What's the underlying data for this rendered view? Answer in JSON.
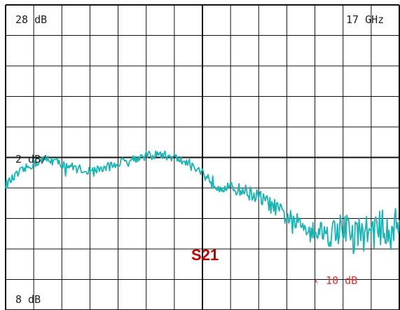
{
  "chart_data": {
    "type": "line",
    "trace_label": "S21",
    "top_left_label": "28 dB",
    "top_right_label": "17 GHz",
    "scale_label": "2 dB/",
    "bottom_left_label": "8 dB",
    "marker_label": "‹ 10 dB",
    "ylim": [
      8,
      28
    ],
    "x_divisions": 14,
    "y_divisions": 10,
    "grid": true,
    "series": [
      {
        "color": "#17b4b4",
        "x": [
          0,
          0.5,
          1,
          1.5,
          2,
          2.5,
          3,
          3.5,
          4,
          4.5,
          5,
          5.5,
          6,
          6.5,
          7,
          7.5,
          8,
          8.5,
          9,
          9.5,
          10,
          10.5,
          11,
          11.5,
          12,
          12.5,
          13,
          13.5,
          14
        ],
        "y": [
          16.2,
          17.0,
          17.6,
          17.9,
          17.6,
          17.3,
          17.1,
          17.3,
          17.6,
          17.9,
          18.1,
          18.2,
          18.0,
          17.6,
          17.0,
          16.2,
          16.0,
          15.8,
          15.4,
          14.8,
          14.1,
          13.6,
          13.3,
          13.0,
          13.5,
          12.9,
          13.2,
          13.4,
          13.5
        ],
        "noise": [
          0.3,
          0.3,
          0.3,
          0.3,
          0.3,
          0.3,
          0.3,
          0.3,
          0.3,
          0.3,
          0.3,
          0.3,
          0.3,
          0.35,
          0.4,
          0.4,
          0.4,
          0.45,
          0.5,
          0.55,
          0.6,
          0.6,
          0.7,
          0.9,
          1.0,
          1.2,
          1.2,
          1.2,
          1.2
        ]
      }
    ]
  }
}
